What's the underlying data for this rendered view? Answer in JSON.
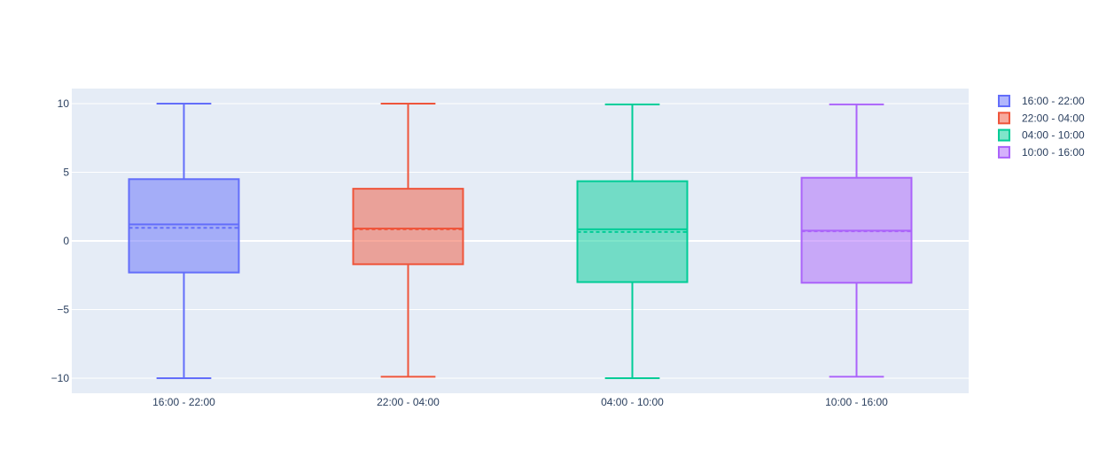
{
  "chart_data": {
    "type": "box",
    "title": "",
    "xlabel": "",
    "ylabel": "",
    "ylim": [
      -11.1,
      11.1
    ],
    "yticks": [
      -10,
      -5,
      0,
      5,
      10
    ],
    "ytick_labels": [
      "−10",
      "−5",
      "0",
      "5",
      "10"
    ],
    "categories": [
      "16:00 - 22:00",
      "22:00 - 04:00",
      "04:00 - 10:00",
      "10:00 - 16:00"
    ],
    "grid": true,
    "legend_position": "top-right",
    "plot_bg": "#e5ecf6",
    "series": [
      {
        "name": "16:00 - 22:00",
        "color": "#636efa",
        "min": -10.0,
        "q1": -2.3,
        "median": 1.2,
        "mean": 0.95,
        "q3": 4.5,
        "max": 10.0
      },
      {
        "name": "22:00 - 04:00",
        "color": "#ef553b",
        "min": -9.9,
        "q1": -1.7,
        "median": 0.9,
        "mean": 0.85,
        "q3": 3.8,
        "max": 10.0
      },
      {
        "name": "04:00 - 10:00",
        "color": "#00cc96",
        "min": -10.0,
        "q1": -3.0,
        "median": 0.85,
        "mean": 0.65,
        "q3": 4.35,
        "max": 9.95
      },
      {
        "name": "10:00 - 16:00",
        "color": "#ab63fa",
        "min": -9.9,
        "q1": -3.05,
        "median": 0.75,
        "mean": 0.7,
        "q3": 4.6,
        "max": 9.95
      }
    ]
  }
}
